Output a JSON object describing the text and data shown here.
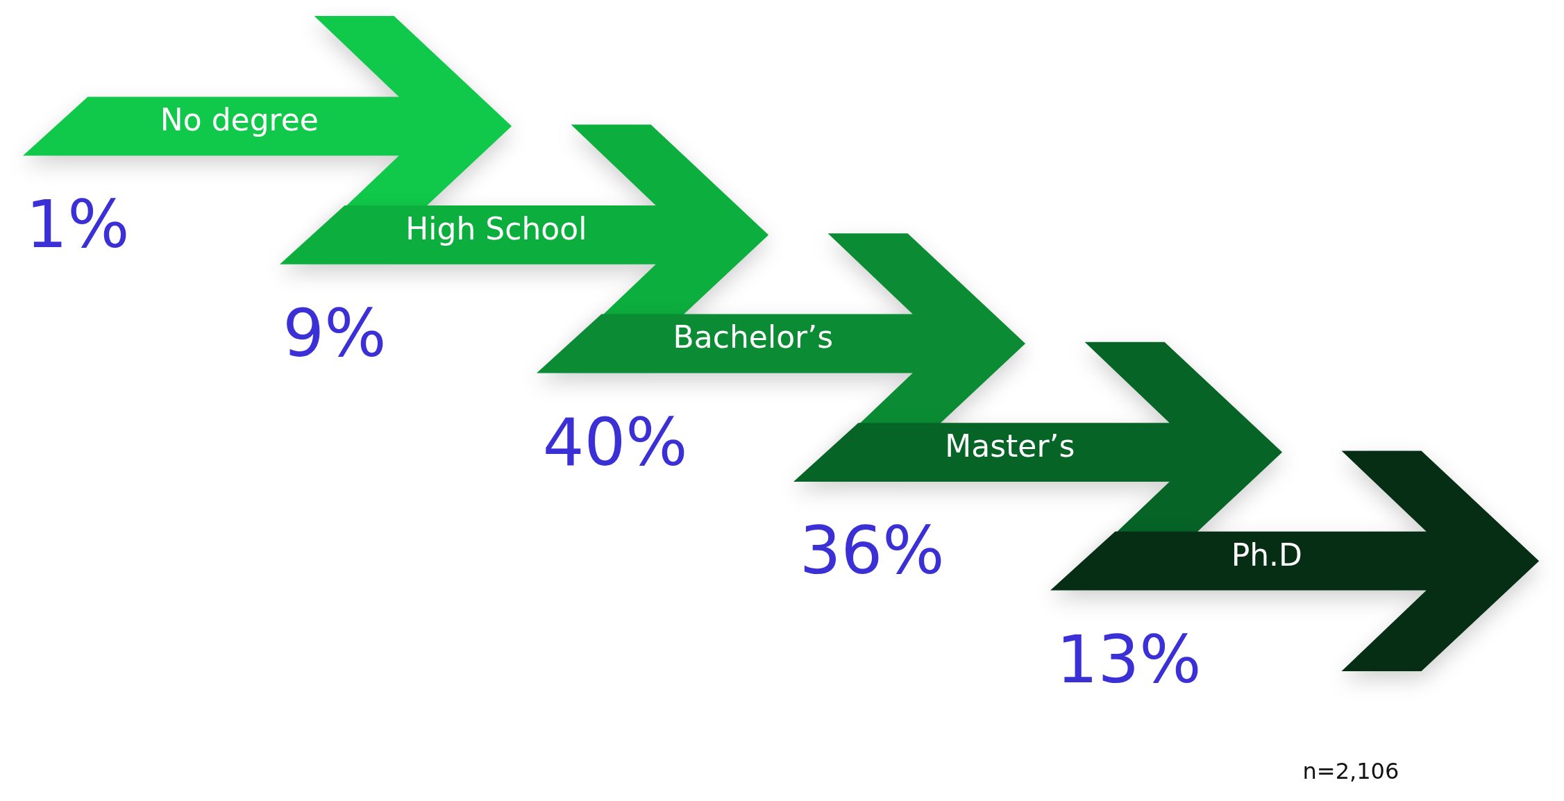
{
  "chart_data": {
    "type": "other",
    "categories": [
      "No degree",
      "High School",
      "Bachelor’s",
      "Master’s",
      "Ph.D"
    ],
    "values": [
      1,
      9,
      40,
      36,
      13
    ],
    "value_labels": [
      "1%",
      "9%",
      "40%",
      "36%",
      "13%"
    ],
    "colors": [
      "#10c94a",
      "#0cae3e",
      "#0b8c34",
      "#066427",
      "#062e14"
    ],
    "annotations": [
      "n=2,106"
    ]
  }
}
